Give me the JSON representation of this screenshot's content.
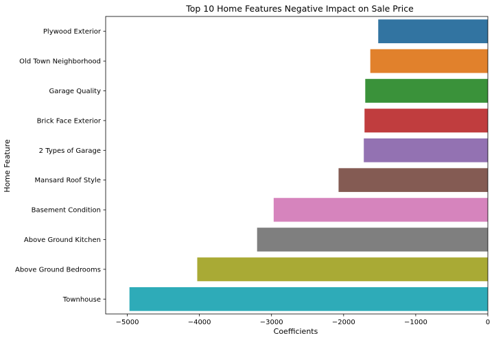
{
  "chart_data": {
    "type": "bar",
    "orientation": "horizontal",
    "title": "Top 10 Home Features Negative Impact on Sale Price",
    "xlabel": "Coefficients",
    "ylabel": "Home Feature",
    "xlim": [
      -5300,
      0
    ],
    "xticks": [
      -5000,
      -4000,
      -3000,
      -2000,
      -1000,
      0
    ],
    "xtick_labels": [
      "−5000",
      "−4000",
      "−3000",
      "−2000",
      "−1000",
      "0"
    ],
    "grid": false,
    "categories": [
      "Plywood Exterior",
      "Old Town Neighborhood",
      "Garage Quality",
      "Brick Face Exterior",
      "2 Types of Garage",
      "Mansard Roof Style",
      "Basement Condition",
      "Above Ground Kitchen",
      "Above Ground Bedrooms",
      "Townhouse"
    ],
    "values": [
      -1520,
      -1630,
      -1700,
      -1710,
      -1720,
      -2070,
      -2970,
      -3200,
      -4030,
      -4970
    ],
    "colors": [
      "#3274a1",
      "#e1812c",
      "#3a923a",
      "#c03d3e",
      "#9372b2",
      "#845b53",
      "#d684bd",
      "#7f7f7f",
      "#a9aa35",
      "#2eabb8"
    ]
  }
}
